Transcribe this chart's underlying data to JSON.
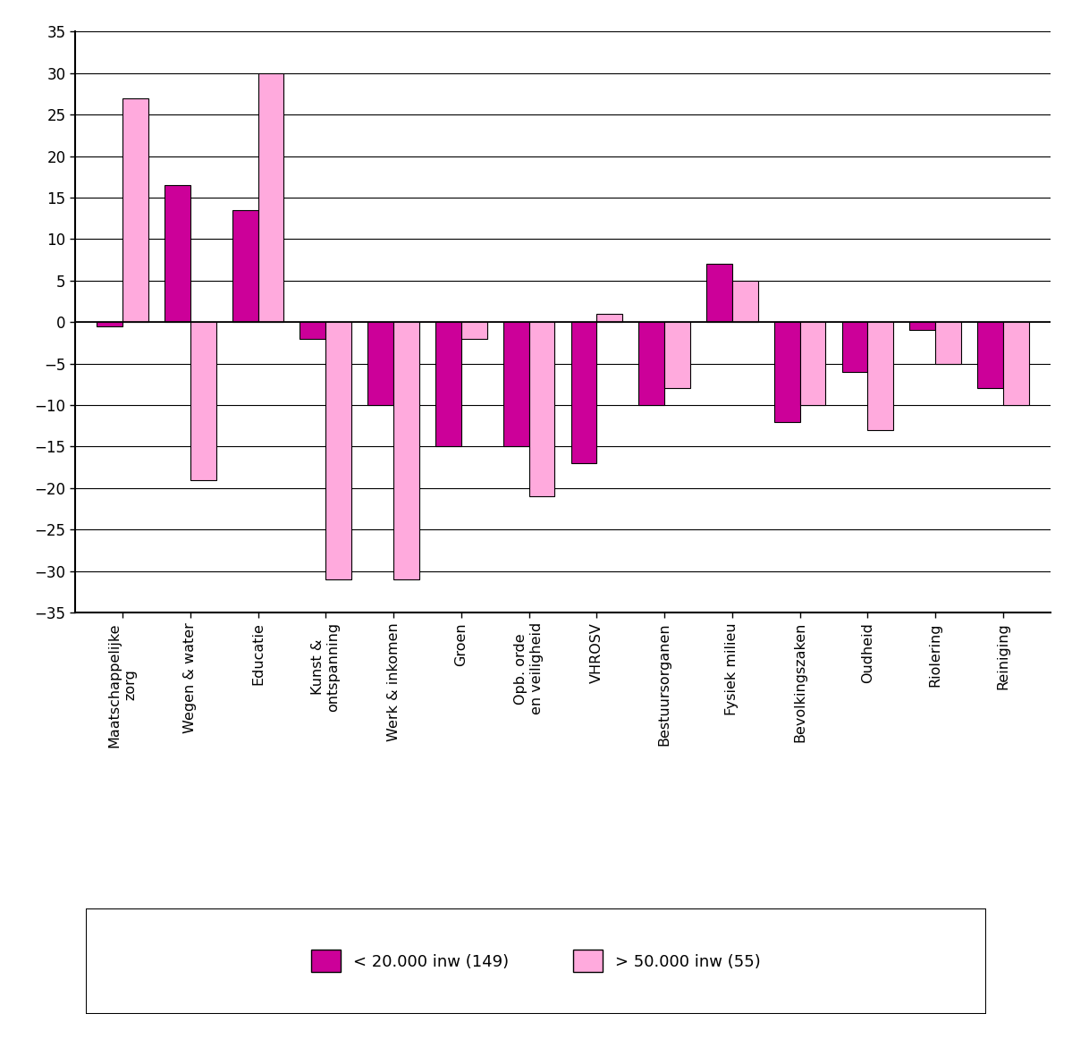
{
  "categories": [
    "Maatschappelijke\nzorg",
    "Wegen & water",
    "Educatie",
    "Kunst &\nontspanning",
    "Werk & inkomen",
    "Groen",
    "Opb. orde\nen veiligheid",
    "VHROSV",
    "Bestuursorganen",
    "Fysiek milieu",
    "Bevolkingszaken",
    "Oudheid",
    "Riolering",
    "Reiniging"
  ],
  "small_values": [
    -0.5,
    16.5,
    13.5,
    -2.0,
    -10.0,
    -15.0,
    -15.0,
    -17.0,
    -10.0,
    7.0,
    -12.0,
    -6.0,
    -1.0,
    -8.0
  ],
  "large_values": [
    27.0,
    -19.0,
    30.0,
    -31.0,
    -31.0,
    -2.0,
    -21.0,
    1.0,
    -8.0,
    5.0,
    -10.0,
    -13.0,
    -5.0,
    -10.0
  ],
  "small_color": "#CC0099",
  "large_color": "#FFAADD",
  "ylim": [
    -35,
    35
  ],
  "yticks": [
    -35,
    -30,
    -25,
    -20,
    -15,
    -10,
    -5,
    0,
    5,
    10,
    15,
    20,
    25,
    30,
    35
  ],
  "legend_small_label": "< 20.000 inw (149)",
  "legend_large_label": "> 50.000 inw (55)",
  "background_color": "#ffffff",
  "bar_width": 0.38
}
